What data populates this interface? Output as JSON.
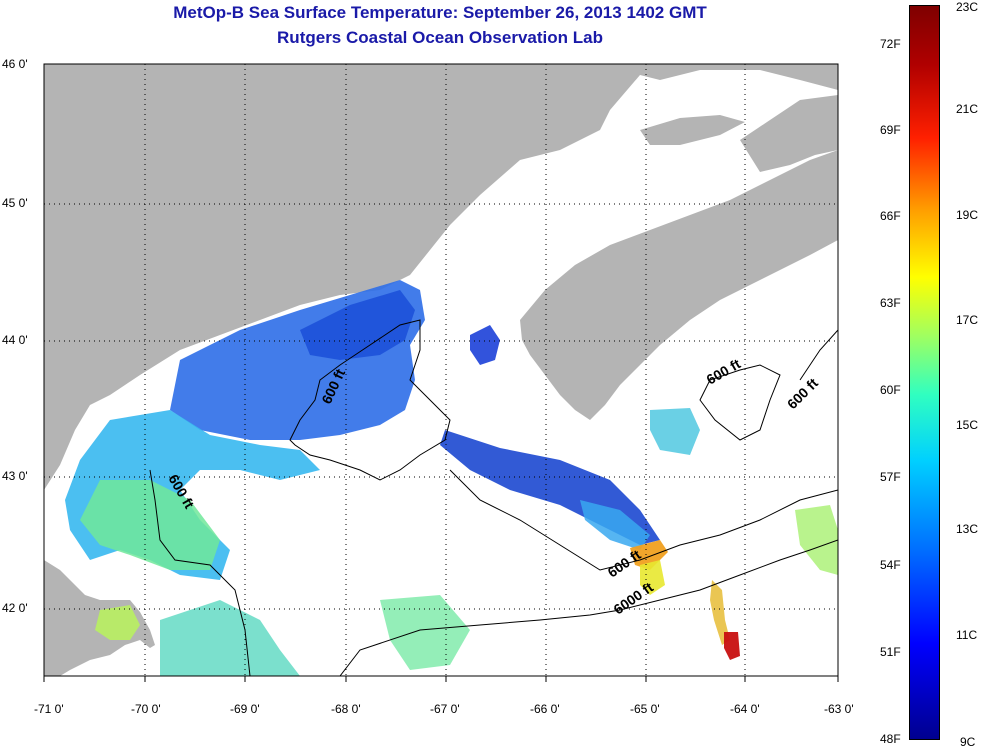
{
  "title_line1": "MetOp-B Sea Surface Temperature:  September 26, 2013 1402 GMT",
  "title_line2": "Rutgers Coastal Ocean Observation Lab",
  "lat_labels": [
    "46 0'",
    "45 0'",
    "44 0'",
    "43 0'",
    "42 0'"
  ],
  "lon_labels": [
    "-71 0'",
    "-70 0'",
    "-69 0'",
    "-68 0'",
    "-67 0'",
    "-66 0'",
    "-65 0'",
    "-64 0'",
    "-63 0'"
  ],
  "contour_labels": [
    "600 ft",
    "600 ft",
    "600 ft",
    "600 ft",
    "6000 ft"
  ],
  "colorbar_f": [
    "72F",
    "69F",
    "66F",
    "63F",
    "60F",
    "57F",
    "54F",
    "51F",
    "48F"
  ],
  "colorbar_c": [
    "23C",
    "21C",
    "19C",
    "17C",
    "15C",
    "13C",
    "11C",
    "9C"
  ],
  "colors": {
    "land": "#b4b4b4",
    "title": "#1a1aa8",
    "grid": "#000000"
  }
}
